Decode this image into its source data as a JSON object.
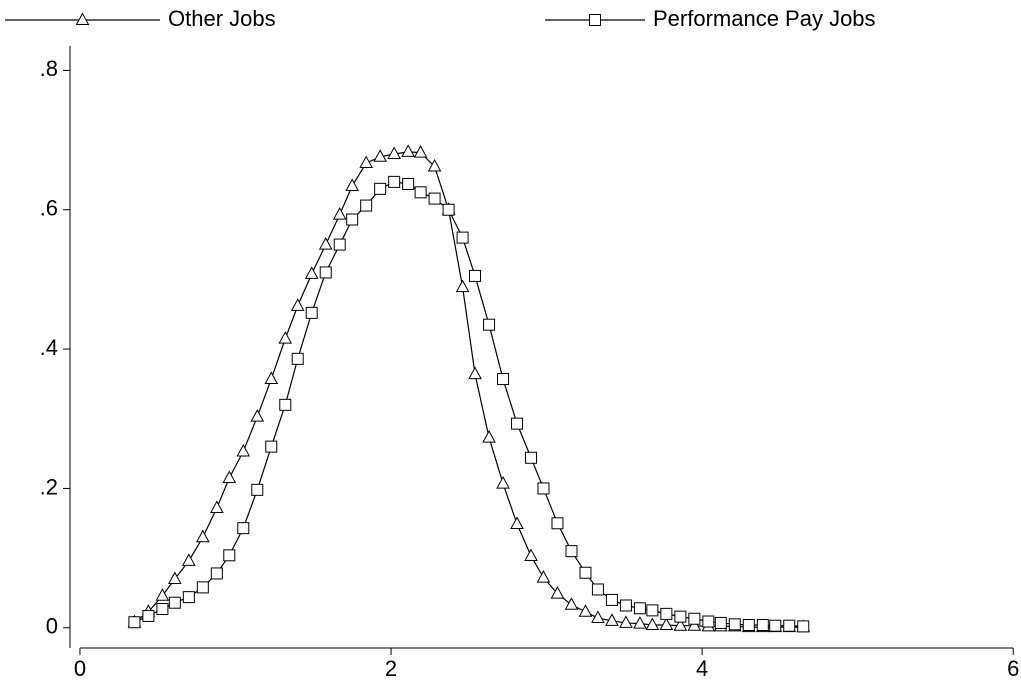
{
  "chart_data": {
    "type": "line",
    "x": [
      0.35,
      0.44,
      0.53,
      0.61,
      0.7,
      0.79,
      0.88,
      0.96,
      1.05,
      1.14,
      1.23,
      1.32,
      1.4,
      1.49,
      1.58,
      1.67,
      1.75,
      1.84,
      1.93,
      2.02,
      2.11,
      2.19,
      2.28,
      2.37,
      2.46,
      2.54,
      2.63,
      2.72,
      2.81,
      2.9,
      2.98,
      3.07,
      3.16,
      3.25,
      3.33,
      3.42,
      3.51,
      3.6,
      3.68,
      3.77,
      3.86,
      3.95,
      4.04,
      4.12,
      4.21,
      4.3,
      4.39,
      4.47,
      4.56,
      4.65
    ],
    "series": [
      {
        "name": "Other Jobs",
        "color": "#000000",
        "marker": "triangle",
        "values": [
          0.008,
          0.023,
          0.046,
          0.07,
          0.096,
          0.13,
          0.172,
          0.215,
          0.253,
          0.303,
          0.357,
          0.415,
          0.462,
          0.508,
          0.55,
          0.593,
          0.634,
          0.667,
          0.676,
          0.68,
          0.683,
          0.682,
          0.662,
          0.6,
          0.489,
          0.364,
          0.273,
          0.207,
          0.149,
          0.103,
          0.072,
          0.049,
          0.033,
          0.023,
          0.014,
          0.01,
          0.007,
          0.006,
          0.004,
          0.004,
          0.003,
          0.003,
          0.002,
          0.002,
          0.002,
          0.001,
          0.001,
          0.001,
          0.001,
          0.001
        ]
      },
      {
        "name": "Performance Pay Jobs",
        "color": "#000000",
        "marker": "square",
        "values": [
          0.008,
          0.017,
          0.027,
          0.036,
          0.044,
          0.058,
          0.078,
          0.104,
          0.143,
          0.198,
          0.26,
          0.32,
          0.386,
          0.452,
          0.51,
          0.55,
          0.586,
          0.606,
          0.63,
          0.64,
          0.637,
          0.625,
          0.616,
          0.6,
          0.56,
          0.505,
          0.435,
          0.357,
          0.293,
          0.244,
          0.2,
          0.15,
          0.11,
          0.079,
          0.055,
          0.04,
          0.032,
          0.028,
          0.025,
          0.02,
          0.016,
          0.013,
          0.009,
          0.007,
          0.005,
          0.004,
          0.004,
          0.003,
          0.003,
          0.002
        ]
      }
    ],
    "xlim": [
      -0.064,
      6.05
    ],
    "xticks": [
      0,
      2,
      4,
      6
    ],
    "ylim": [
      -0.029,
      0.835
    ],
    "yticks": [
      0,
      {
        "value": 0.2,
        "label": ".2"
      },
      {
        "value": 0.4,
        "label": ".4"
      },
      {
        "value": 0.6,
        "label": ".6"
      },
      {
        "value": 0.8,
        "label": ".8"
      }
    ],
    "grid": false,
    "legend": "top"
  }
}
